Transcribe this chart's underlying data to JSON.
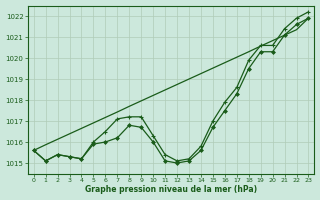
{
  "title": "Graphe pression niveau de la mer (hPa)",
  "bg_color": "#cce8dc",
  "line_color": "#1a5c1a",
  "grid_color": "#b0ccb8",
  "ylim": [
    1014.5,
    1022.5
  ],
  "xlim": [
    -0.5,
    23.5
  ],
  "yticks": [
    1015,
    1016,
    1017,
    1018,
    1019,
    1020,
    1021,
    1022
  ],
  "xticks": [
    0,
    1,
    2,
    3,
    4,
    5,
    6,
    7,
    8,
    9,
    10,
    11,
    12,
    13,
    14,
    15,
    16,
    17,
    18,
    19,
    20,
    21,
    22,
    23
  ],
  "series_straight": [
    1015.6,
    1015.87,
    1016.13,
    1016.39,
    1016.65,
    1016.91,
    1017.17,
    1017.43,
    1017.7,
    1017.96,
    1018.22,
    1018.48,
    1018.74,
    1019.0,
    1019.26,
    1019.52,
    1019.78,
    1020.04,
    1020.3,
    1020.57,
    1020.83,
    1021.09,
    1021.35,
    1021.9
  ],
  "series_curved": [
    1015.6,
    1015.1,
    1015.4,
    1015.3,
    1015.2,
    1015.9,
    1016.0,
    1016.2,
    1016.8,
    1016.7,
    1016.0,
    1015.1,
    1015.0,
    1015.1,
    1015.6,
    1016.7,
    1017.5,
    1018.3,
    1019.5,
    1020.3,
    1020.3,
    1021.1,
    1021.6,
    1021.9
  ],
  "series_top": [
    1015.6,
    1015.1,
    1015.4,
    1015.3,
    1015.2,
    1016.0,
    1016.5,
    1017.1,
    1017.2,
    1017.2,
    1016.3,
    1015.4,
    1015.1,
    1015.2,
    1015.8,
    1017.0,
    1017.9,
    1018.6,
    1019.9,
    1020.6,
    1020.6,
    1021.4,
    1021.9,
    1022.2
  ]
}
